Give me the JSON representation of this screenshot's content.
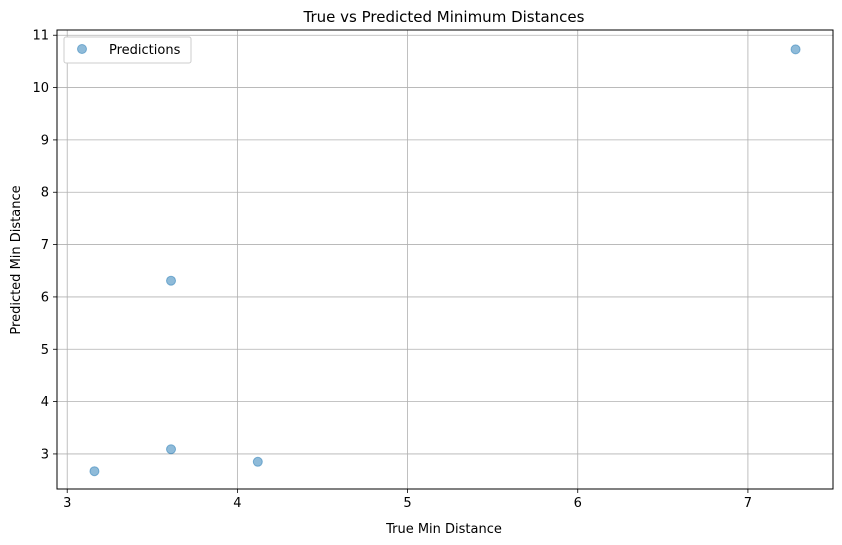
{
  "chart_data": {
    "type": "scatter",
    "title": "True vs Predicted Minimum Distances",
    "xlabel": "True Min Distance",
    "ylabel": "Predicted Min Distance",
    "xlim": [
      2.94,
      7.5
    ],
    "ylim": [
      2.33,
      11.1
    ],
    "xticks": [
      3,
      4,
      5,
      6,
      7
    ],
    "yticks": [
      3,
      4,
      5,
      6,
      7,
      8,
      9,
      10,
      11
    ],
    "grid": true,
    "legend_position": "top-left",
    "series": [
      {
        "name": "Predictions",
        "color": "#1f77b4",
        "alpha": 0.5,
        "points": [
          {
            "x": 3.16,
            "y": 2.67
          },
          {
            "x": 3.61,
            "y": 3.09
          },
          {
            "x": 3.61,
            "y": 6.31
          },
          {
            "x": 4.12,
            "y": 2.85
          },
          {
            "x": 7.28,
            "y": 10.73
          }
        ]
      }
    ]
  }
}
